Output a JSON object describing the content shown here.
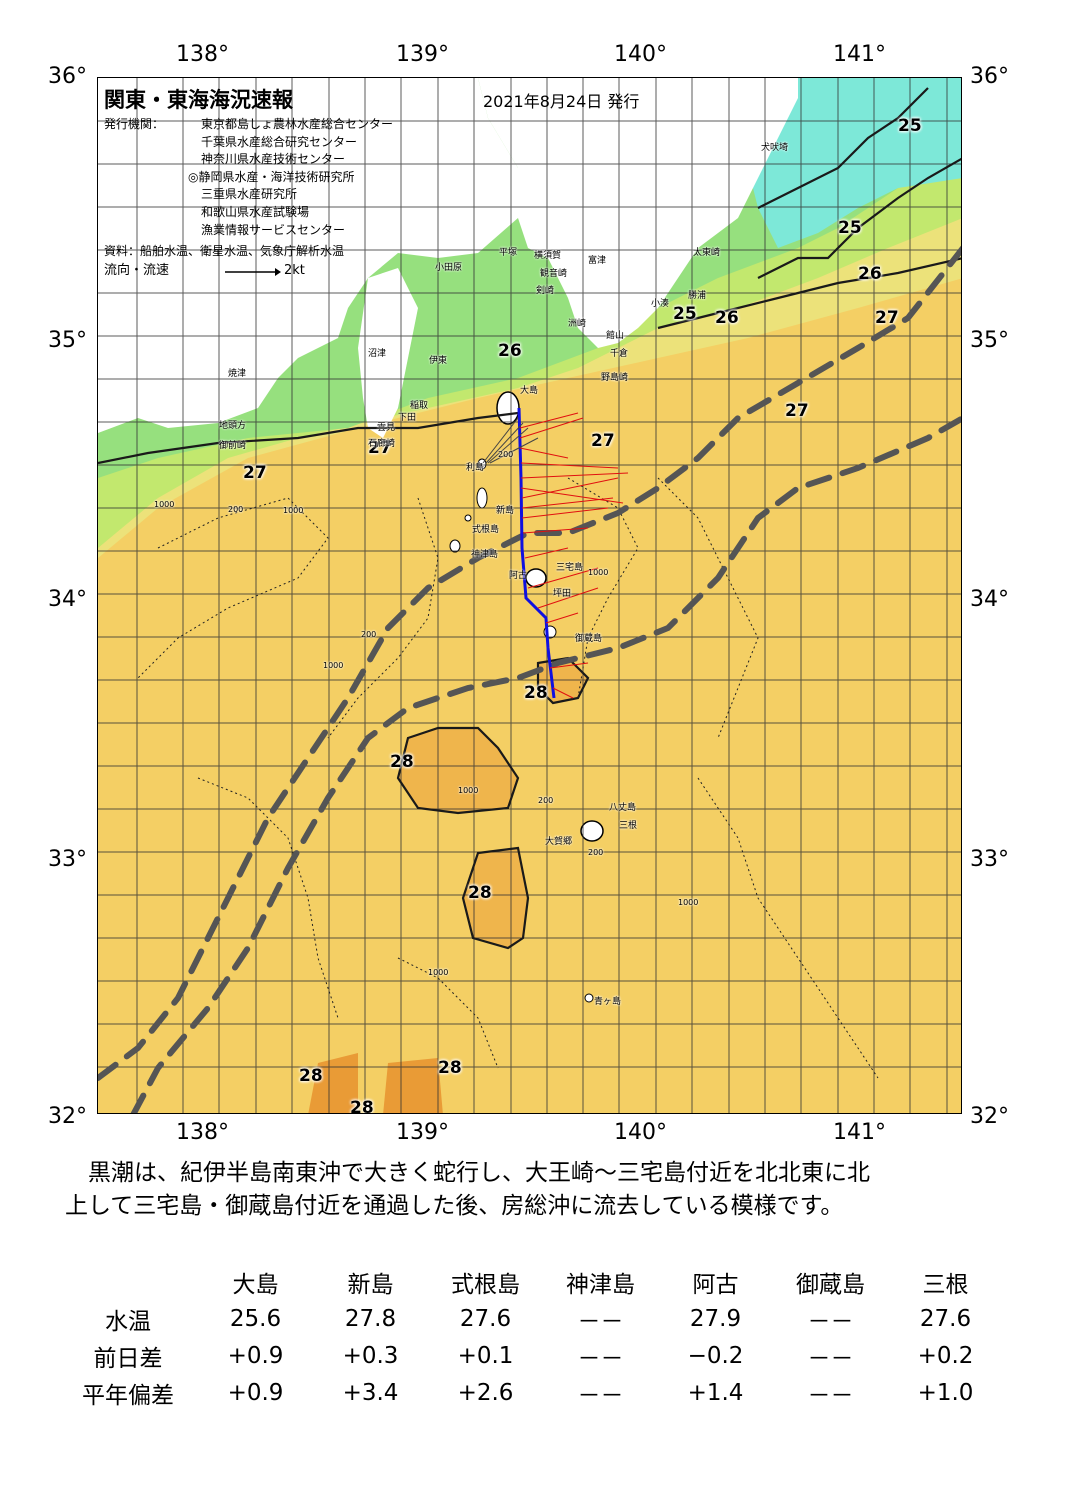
{
  "map": {
    "title": "関東・東海海況速報",
    "issue_date": "2021年8月24日 発行",
    "publisher_label": "発行機関：",
    "publishers": [
      "東京都島しょ農林水産総合センター",
      "千葉県水産総合研究センター",
      "神奈川県水産技術センター",
      "◎静岡県水産・海洋技術研究所",
      "三重県水産研究所",
      "和歌山県水産試験場",
      "漁業情報サービスセンター"
    ],
    "sources": "資料：船舶水温、衛星水温、気象庁解析水温",
    "current_legend_label": "流向・流速",
    "current_legend_scale": "2kt",
    "lon_labels": [
      "138°",
      "139°",
      "140°",
      "141°"
    ],
    "lat_labels": [
      "36°",
      "35°",
      "34°",
      "33°",
      "32°"
    ],
    "isotherm_labels": [
      "25",
      "25",
      "25",
      "26",
      "26",
      "26",
      "27",
      "27",
      "27",
      "27",
      "27",
      "28",
      "28",
      "28",
      "28",
      "28",
      "28"
    ],
    "place_names": [
      "犬吠埼",
      "太東崎",
      "勝浦",
      "小湊",
      "富津",
      "観音崎",
      "剣崎",
      "横須賀",
      "平塚",
      "小田原",
      "館山",
      "千倉",
      "野島崎",
      "洲崎",
      "伊東",
      "大島",
      "稲取",
      "下田",
      "石廊崎",
      "沼津",
      "焼津",
      "地頭方",
      "御前崎",
      "雲見",
      "利島",
      "新島",
      "式根島",
      "神津島",
      "三宅島",
      "阿古",
      "坪田",
      "御蔵島",
      "八丈島",
      "三根",
      "大賀郷",
      "青ヶ島"
    ],
    "depth_labels": [
      "1000",
      "200",
      "1000",
      "200",
      "1000",
      "200",
      "1000",
      "200",
      "1000",
      "1000",
      "1000",
      "200"
    ],
    "colors": {
      "cold_water": "#7de8d8",
      "coastal_green": "#96e07e",
      "light_green": "#c2e86e",
      "yellow": "#ece27a",
      "warm_yellow": "#f4cf64",
      "warm_orange": "#efb54c",
      "hot_orange": "#e99b36",
      "land": "#ffffff",
      "kuroshio_axis": "#555555",
      "ship_track": "#1010e0",
      "current_vectors": "#e01010"
    }
  },
  "description": {
    "line1": "黒潮は、紀伊半島南東沖で大きく蛇行し、大王崎～三宅島付近を北北東に北",
    "line2": "上して三宅島・御蔵島付近を通過した後、房総沖に流去している模様です。"
  },
  "observations": {
    "stations": [
      "大島",
      "新島",
      "式根島",
      "神津島",
      "阿古",
      "御蔵島",
      "三根"
    ],
    "rows": [
      {
        "label": "水温",
        "values": [
          "25.6",
          "27.8",
          "27.6",
          "－－",
          "27.9",
          "－－",
          "27.6"
        ]
      },
      {
        "label": "前日差",
        "values": [
          "+0.9",
          "+0.3",
          "+0.1",
          "－－",
          "−0.2",
          "－－",
          "+0.2"
        ]
      },
      {
        "label": "平年偏差",
        "values": [
          "+0.9",
          "+3.4",
          "+2.6",
          "－－",
          "+1.4",
          "－－",
          "+1.0"
        ]
      }
    ]
  }
}
